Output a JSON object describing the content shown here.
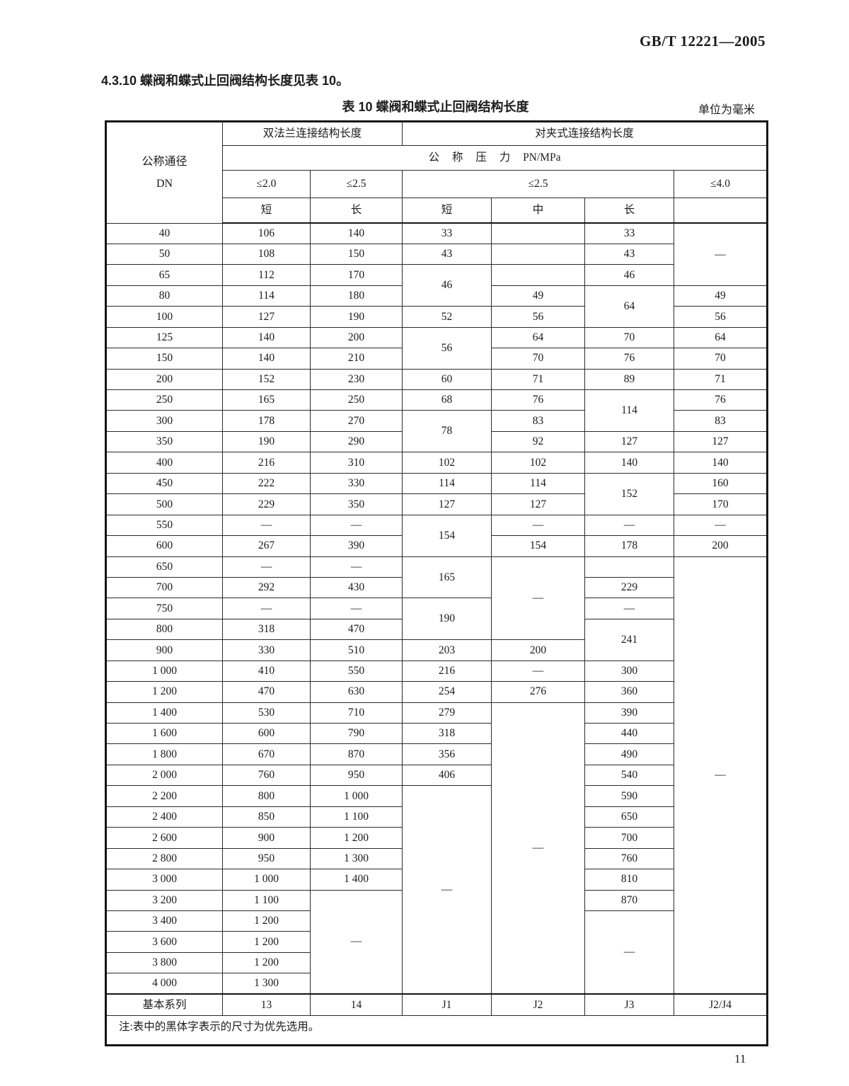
{
  "page": {
    "doc_number": "GB/T 12221—2005",
    "section_heading": "4.3.10  蝶阀和蝶式止回阀结构长度见表 10。",
    "table_title": "表 10  蝶阀和蝶式止回阀结构长度",
    "unit_note": "单位为毫米",
    "page_number": "11"
  },
  "table": {
    "header": {
      "dn_title": "公称通径",
      "dn_code": "DN",
      "flange_group": "双法兰连接结构长度",
      "wafer_group": "对夹式连接结构长度",
      "pressure_row": "公 称 压 力 PN/MPa",
      "p_cols": [
        "≤2.0",
        "≤2.5",
        "≤2.5",
        "≤4.0"
      ],
      "type_cols": [
        "短",
        "长",
        "短",
        "中",
        "长"
      ]
    },
    "rows": [
      [
        "40",
        {
          "t": "106",
          "b": true
        },
        "140",
        "33",
        "",
        "33",
        {
          "t": "—",
          "rs": 3
        }
      ],
      [
        "50",
        {
          "t": "108",
          "b": true
        },
        "150",
        "43",
        "",
        "43",
        null
      ],
      [
        "65",
        {
          "t": "112",
          "b": true
        },
        "170",
        {
          "t": "46",
          "rs": 2
        },
        "",
        "46",
        null
      ],
      [
        "80",
        {
          "t": "114",
          "b": true
        },
        "180",
        null,
        "49",
        {
          "t": "64",
          "rs": 2
        },
        "49"
      ],
      [
        "100",
        {
          "t": "127",
          "b": true
        },
        "190",
        "52",
        "56",
        null,
        "56"
      ],
      [
        "125",
        {
          "t": "140",
          "b": true
        },
        "200",
        {
          "t": "56",
          "rs": 2
        },
        "64",
        "70",
        "64"
      ],
      [
        "150",
        {
          "t": "140",
          "b": true
        },
        "210",
        null,
        "70",
        "76",
        "70"
      ],
      [
        "200",
        {
          "t": "152",
          "b": true
        },
        "230",
        "60",
        "71",
        "89",
        "71"
      ],
      [
        "250",
        "165",
        {
          "t": "250",
          "b": true
        },
        "68",
        "76",
        {
          "t": "114",
          "rs": 2
        },
        "76"
      ],
      [
        "300",
        "178",
        {
          "t": "270",
          "b": true
        },
        {
          "t": "78",
          "rs": 2
        },
        "83",
        null,
        "83"
      ],
      [
        "350",
        "190",
        {
          "t": "290",
          "b": true
        },
        null,
        "92",
        "127",
        "127"
      ],
      [
        "400",
        "216",
        {
          "t": "310",
          "b": true
        },
        "102",
        "102",
        "140",
        "140"
      ],
      [
        "450",
        "222",
        {
          "t": "330",
          "b": true
        },
        "114",
        "114",
        {
          "t": "152",
          "rs": 2
        },
        "160"
      ],
      [
        "500",
        "229",
        {
          "t": "350",
          "b": true
        },
        "127",
        "127",
        null,
        "170"
      ],
      [
        "550",
        "—",
        "—",
        {
          "t": "154",
          "rs": 2
        },
        "—",
        "—",
        "—"
      ],
      [
        "600",
        "267",
        {
          "t": "390",
          "b": true
        },
        null,
        "154",
        "178",
        "200"
      ],
      [
        "650",
        "—",
        "—",
        {
          "t": "165",
          "rs": 2
        },
        {
          "t": "—",
          "rs": 4
        },
        "",
        {
          "t": "—",
          "rs": 21
        }
      ],
      [
        "700",
        "292",
        {
          "t": "430",
          "b": true
        },
        null,
        null,
        "229",
        null
      ],
      [
        "750",
        "—",
        "—",
        {
          "t": "190",
          "rs": 2
        },
        null,
        "—",
        null
      ],
      [
        "800",
        "318",
        {
          "t": "470",
          "b": true
        },
        null,
        null,
        {
          "t": "241",
          "rs": 2
        },
        null
      ],
      [
        "900",
        "330",
        {
          "t": "510",
          "b": true
        },
        "203",
        "200",
        null,
        null
      ],
      [
        "1 000",
        "410",
        {
          "t": "550",
          "b": true
        },
        "216",
        "—",
        "300",
        null
      ],
      [
        "1 200",
        "470",
        {
          "t": "630",
          "b": true
        },
        "254",
        "276",
        "360",
        null
      ],
      [
        "1 400",
        "530",
        {
          "t": "710",
          "b": true
        },
        "279",
        {
          "t": "—",
          "rs": 14
        },
        "390",
        null
      ],
      [
        "1 600",
        "600",
        {
          "t": "790",
          "b": true
        },
        "318",
        null,
        "440",
        null
      ],
      [
        "1 800",
        "670",
        {
          "t": "870",
          "b": true
        },
        "356",
        null,
        "490",
        null
      ],
      [
        "2 000",
        "760",
        {
          "t": "950",
          "b": true
        },
        "406",
        null,
        "540",
        null
      ],
      [
        "2 200",
        "800",
        {
          "t": "1 000",
          "b": true
        },
        {
          "t": "—",
          "rs": 10
        },
        null,
        "590",
        null
      ],
      [
        "2 400",
        "850",
        {
          "t": "1 100",
          "b": true
        },
        null,
        null,
        "650",
        null
      ],
      [
        "2 600",
        "900",
        {
          "t": "1 200",
          "b": true
        },
        null,
        null,
        "700",
        null
      ],
      [
        "2 800",
        "950",
        {
          "t": "1 300",
          "b": true
        },
        null,
        null,
        "760",
        null
      ],
      [
        "3 000",
        "1 000",
        {
          "t": "1 400",
          "b": true
        },
        null,
        null,
        "810",
        null
      ],
      [
        "3 200",
        "1 100",
        {
          "t": "—",
          "rs": 5
        },
        null,
        null,
        "870",
        null
      ],
      [
        "3 400",
        "1 200",
        null,
        null,
        null,
        {
          "t": "—",
          "rs": 4
        },
        null
      ],
      [
        "3 600",
        "1 200",
        null,
        null,
        null,
        null,
        null
      ],
      [
        "3 800",
        "1 200",
        null,
        null,
        null,
        null,
        null
      ],
      [
        "4 000",
        "1 300",
        null,
        null,
        null,
        null,
        null
      ]
    ],
    "series_row": {
      "label": "基本系列",
      "values": [
        "13",
        "14",
        "J1",
        "J2",
        "J3",
        "J2/J4"
      ]
    },
    "note": "注:表中的黑体字表示的尺寸为优先选用。"
  }
}
